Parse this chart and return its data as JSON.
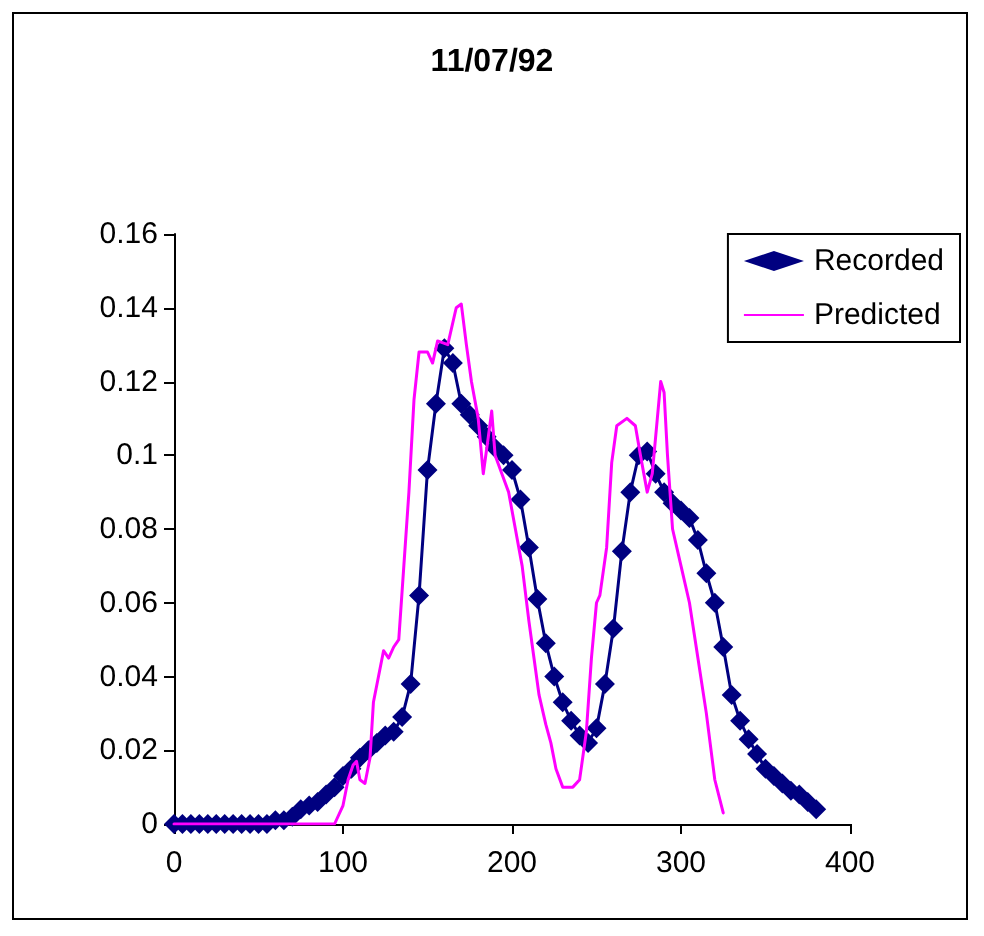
{
  "chart_data": {
    "type": "line",
    "title": "11/07/92",
    "xlim": [
      0,
      400
    ],
    "xticks": [
      0,
      100,
      200,
      300,
      400
    ],
    "ylim": [
      0,
      0.16
    ],
    "yticks": [
      0,
      0.02,
      0.04,
      0.06,
      0.08,
      0.1,
      0.12,
      0.14,
      0.16
    ],
    "grid": false,
    "legend": "top right",
    "series": [
      {
        "name": "Recorded",
        "color": "#000080",
        "marker": "diamond",
        "x": [
          0,
          5,
          10,
          15,
          20,
          25,
          30,
          35,
          40,
          45,
          50,
          55,
          60,
          65,
          70,
          75,
          80,
          85,
          90,
          95,
          100,
          105,
          110,
          115,
          120,
          125,
          130,
          135,
          140,
          145,
          150,
          155,
          160,
          165,
          170,
          175,
          180,
          185,
          190,
          195,
          200,
          205,
          210,
          215,
          220,
          225,
          230,
          235,
          240,
          245,
          250,
          255,
          260,
          265,
          270,
          275,
          280,
          285,
          290,
          295,
          300,
          305,
          310,
          315,
          320,
          325,
          330,
          335,
          340,
          345,
          350,
          355,
          360,
          365,
          370,
          375,
          380
        ],
        "values": [
          0,
          0,
          0,
          0,
          0,
          0,
          0,
          0,
          0,
          0,
          0,
          0,
          0.001,
          0.001,
          0.002,
          0.004,
          0.005,
          0.006,
          0.008,
          0.01,
          0.013,
          0.015,
          0.018,
          0.02,
          0.022,
          0.024,
          0.025,
          0.029,
          0.038,
          0.062,
          0.096,
          0.114,
          0.129,
          0.125,
          0.114,
          0.111,
          0.108,
          0.105,
          0.102,
          0.1,
          0.096,
          0.088,
          0.075,
          0.061,
          0.049,
          0.04,
          0.033,
          0.028,
          0.024,
          0.022,
          0.026,
          0.038,
          0.053,
          0.074,
          0.09,
          0.1,
          0.101,
          0.095,
          0.09,
          0.087,
          0.085,
          0.083,
          0.077,
          0.068,
          0.06,
          0.048,
          0.035,
          0.028,
          0.023,
          0.019,
          0.015,
          0.013,
          0.011,
          0.009,
          0.008,
          0.006,
          0.004
        ]
      },
      {
        "name": "Predicted",
        "color": "#ff00ff",
        "marker": "none",
        "x": [
          0,
          95,
          100,
          103,
          106,
          108,
          110,
          113,
          116,
          118,
          121,
          124,
          127,
          130,
          133,
          136,
          139,
          142,
          145,
          150,
          153,
          156,
          162,
          167,
          170,
          173,
          176,
          180,
          183,
          186,
          188,
          190,
          194,
          198,
          202,
          206,
          210,
          213,
          216,
          220,
          223,
          226,
          230,
          236,
          240,
          244,
          247,
          250,
          252,
          256,
          259,
          262,
          268,
          273,
          276,
          280,
          283,
          286,
          288,
          290,
          292,
          295,
          300,
          305,
          310,
          315,
          320,
          325
        ],
        "values": [
          0,
          0,
          0.005,
          0.012,
          0.016,
          0.017,
          0.012,
          0.011,
          0.018,
          0.033,
          0.04,
          0.047,
          0.045,
          0.048,
          0.05,
          0.07,
          0.09,
          0.115,
          0.128,
          0.128,
          0.125,
          0.131,
          0.13,
          0.14,
          0.141,
          0.13,
          0.12,
          0.11,
          0.095,
          0.105,
          0.112,
          0.1,
          0.095,
          0.09,
          0.08,
          0.07,
          0.055,
          0.045,
          0.035,
          0.027,
          0.022,
          0.015,
          0.01,
          0.01,
          0.012,
          0.025,
          0.045,
          0.06,
          0.062,
          0.075,
          0.098,
          0.108,
          0.11,
          0.108,
          0.1,
          0.09,
          0.095,
          0.11,
          0.12,
          0.117,
          0.1,
          0.08,
          0.07,
          0.06,
          0.045,
          0.03,
          0.012,
          0.003
        ]
      }
    ]
  }
}
